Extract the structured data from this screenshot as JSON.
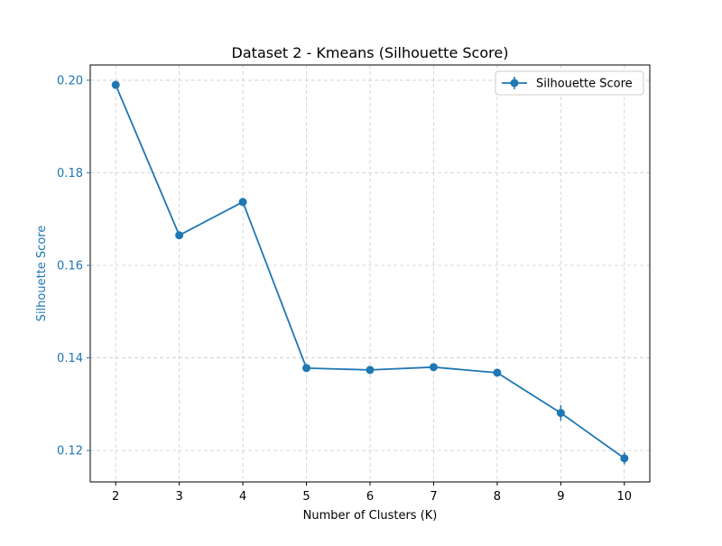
{
  "chart_data": {
    "type": "line",
    "title": "Dataset 2 - Kmeans (Silhouette Score)",
    "xlabel": "Number of Clusters (K)",
    "ylabel": "Silhouette Score",
    "x": [
      2,
      3,
      4,
      5,
      6,
      7,
      8,
      9,
      10
    ],
    "x_ticks": [
      "2",
      "3",
      "4",
      "5",
      "6",
      "7",
      "8",
      "9",
      "10"
    ],
    "y_ticks": [
      "0.12",
      "0.14",
      "0.16",
      "0.18",
      "0.20"
    ],
    "y_tick_values": [
      0.12,
      0.14,
      0.16,
      0.18,
      0.2
    ],
    "xlim": [
      1.6,
      10.4
    ],
    "ylim": [
      0.1132,
      0.2033
    ],
    "grid": true,
    "legend_position": "top-right",
    "series": [
      {
        "name": "Silhouette Score",
        "values": [
          0.199,
          0.1665,
          0.1737,
          0.1378,
          0.1374,
          0.138,
          0.1368,
          0.1281,
          0.1183
        ],
        "errors": [
          0.0003,
          0.0003,
          0.0003,
          0.0003,
          0.0003,
          0.0003,
          0.0003,
          0.0017,
          0.0013
        ],
        "color": "#1f77b4"
      }
    ],
    "ylabel_color": "#1f77b4",
    "ytick_color": "#1f77b4"
  }
}
